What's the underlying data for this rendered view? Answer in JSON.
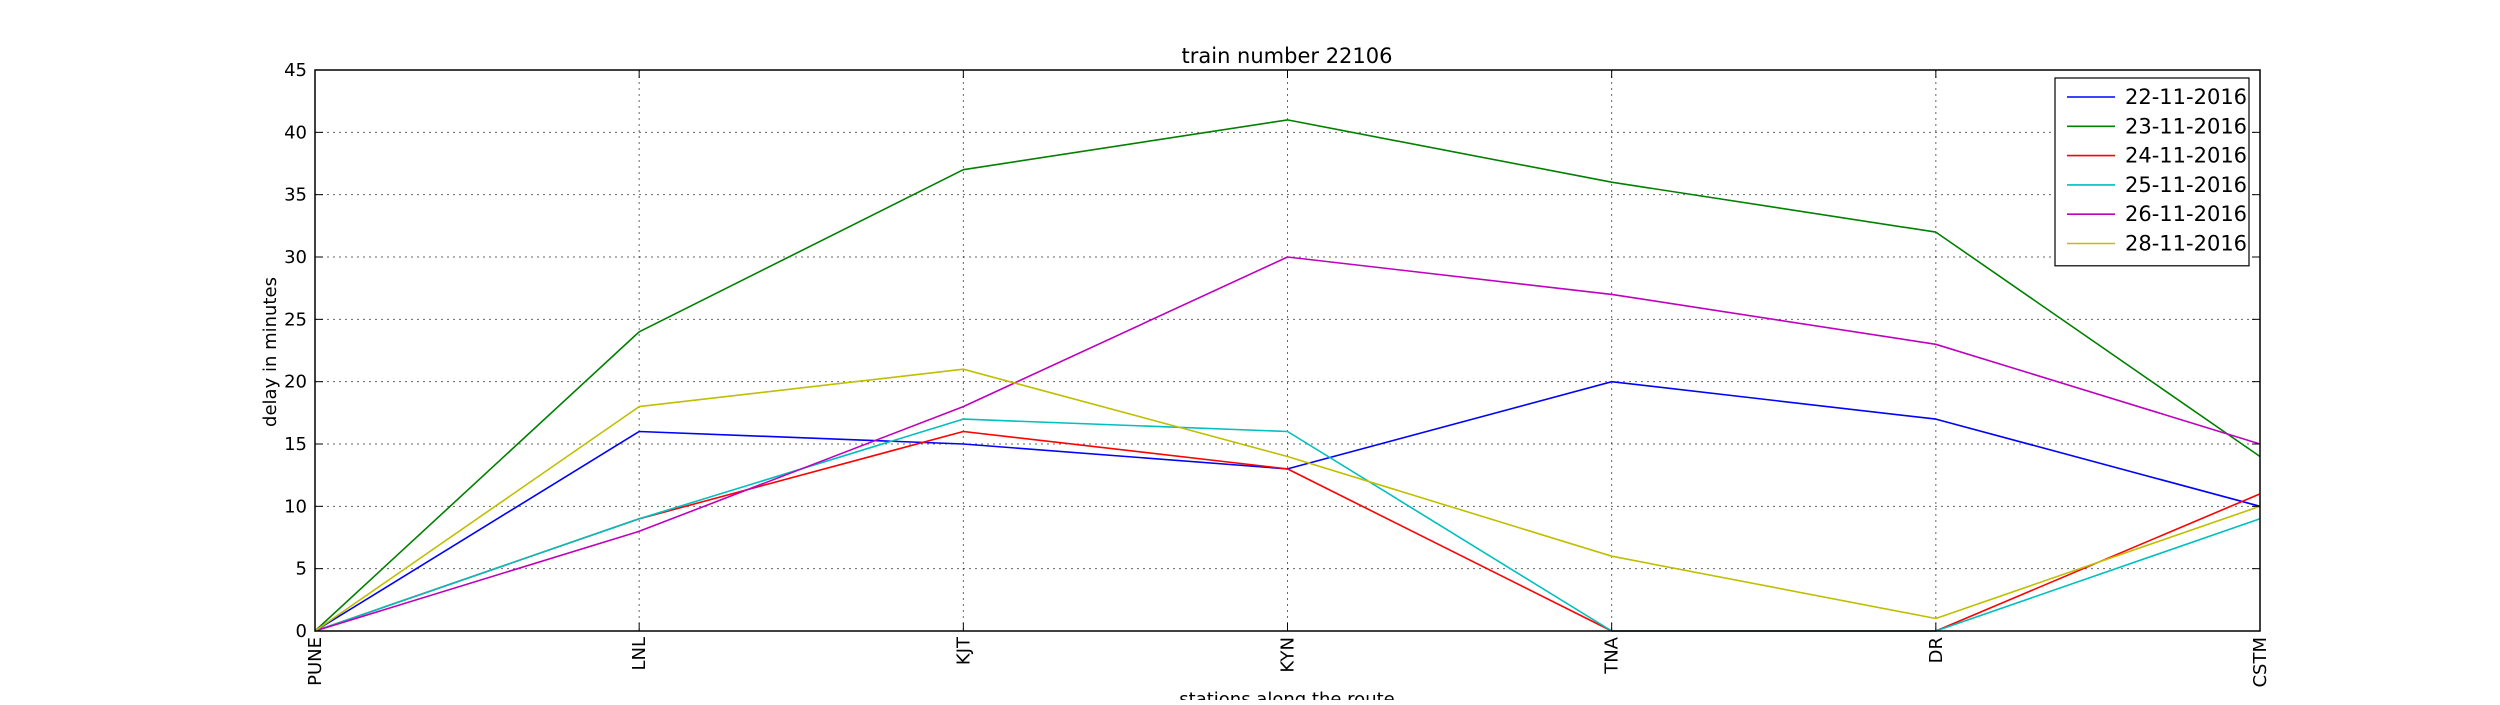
{
  "chart_data": {
    "type": "line",
    "title": "train number 22106",
    "xlabel": "stations along the route",
    "ylabel": "delay in minutes",
    "categories": [
      "PUNE",
      "LNL",
      "KJT",
      "KYN",
      "TNA",
      "DR",
      "CSTM"
    ],
    "ylim": [
      0,
      45
    ],
    "yticks": [
      0,
      5,
      10,
      15,
      20,
      25,
      30,
      35,
      40,
      45
    ],
    "grid": true,
    "legend_position": "top-right",
    "series": [
      {
        "name": "22-11-2016",
        "color": "#0000ff",
        "values": [
          0,
          16,
          15,
          13,
          20,
          17,
          10
        ]
      },
      {
        "name": "23-11-2016",
        "color": "#008000",
        "values": [
          0,
          24,
          37,
          41,
          36,
          32,
          14
        ]
      },
      {
        "name": "24-11-2016",
        "color": "#ff0000",
        "values": [
          0,
          9,
          16,
          13,
          0,
          0,
          11
        ]
      },
      {
        "name": "25-11-2016",
        "color": "#00bfbf",
        "values": [
          0,
          9,
          17,
          16,
          0,
          0,
          9
        ]
      },
      {
        "name": "26-11-2016",
        "color": "#bf00bf",
        "values": [
          0,
          8,
          18,
          30,
          27,
          23,
          15
        ]
      },
      {
        "name": "28-11-2016",
        "color": "#bfbf00",
        "values": [
          0,
          18,
          21,
          14,
          6,
          1,
          10
        ]
      }
    ]
  }
}
